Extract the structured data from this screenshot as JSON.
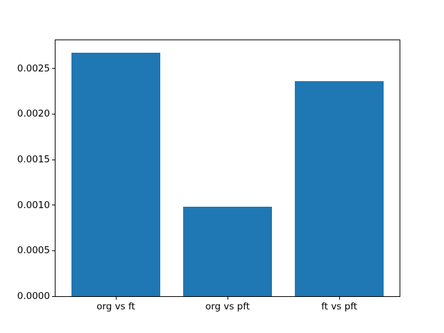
{
  "chart_data": {
    "type": "bar",
    "title": "",
    "xlabel": "",
    "ylabel": "",
    "categories": [
      "org vs ft",
      "org vs pft",
      "ft vs pft"
    ],
    "values": [
      0.00267,
      0.00098,
      0.00236
    ],
    "yticks": [
      0.0,
      0.0005,
      0.001,
      0.0015,
      0.002,
      0.0025
    ],
    "ytick_labels": [
      "0.0000",
      "0.0005",
      "0.0010",
      "0.0015",
      "0.0020",
      "0.0025"
    ],
    "ylim": [
      0,
      0.00281
    ],
    "grid": false,
    "legend": false,
    "bar_color": "#1f77b4",
    "axis_color": "#000000",
    "background_color": "#ffffff"
  }
}
